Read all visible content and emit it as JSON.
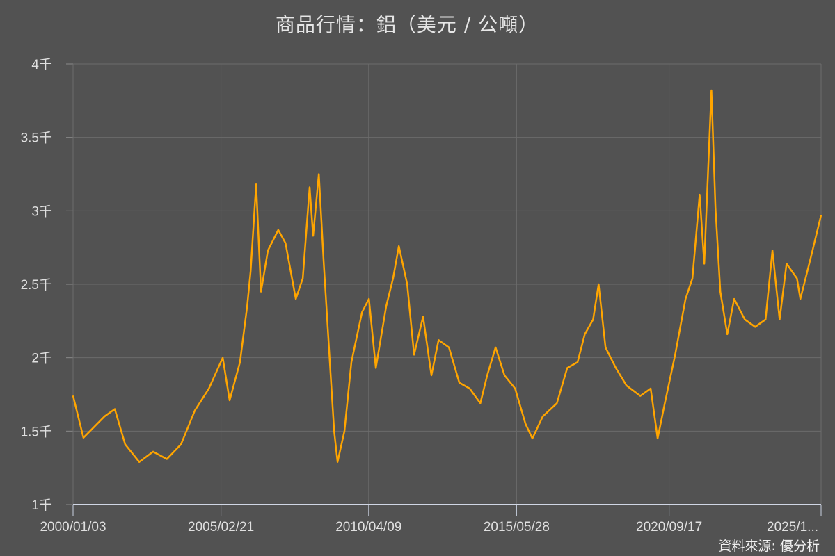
{
  "chart_data": {
    "type": "line",
    "title": "商品行情：鋁（美元 / 公噸）",
    "source": "資料來源: 優分析",
    "xlabel": "",
    "ylabel": "",
    "ylim": [
      1000,
      4000
    ],
    "xlim": [
      2000.0,
      2025.99
    ],
    "grid": true,
    "y_ticks": [
      {
        "value": 1000,
        "label": "1千"
      },
      {
        "value": 1500,
        "label": "1.5千"
      },
      {
        "value": 2000,
        "label": "2千"
      },
      {
        "value": 2500,
        "label": "2.5千"
      },
      {
        "value": 3000,
        "label": "3千"
      },
      {
        "value": 3500,
        "label": "3.5千"
      },
      {
        "value": 4000,
        "label": "4千"
      }
    ],
    "x_ticks": [
      {
        "value": 2000.0,
        "label": "2000/01/03"
      },
      {
        "value": 2005.14,
        "label": "2005/02/21"
      },
      {
        "value": 2010.27,
        "label": "2010/04/09"
      },
      {
        "value": 2015.41,
        "label": "2015/05/28"
      },
      {
        "value": 2020.71,
        "label": "2020/09/17"
      },
      {
        "value": 2025.99,
        "label": "2025/1..."
      }
    ],
    "series": [
      {
        "name": "鋁",
        "color": "#FFA500",
        "x": [
          2000.0,
          2000.36,
          2001.09,
          2001.45,
          2001.81,
          2002.3,
          2002.78,
          2003.26,
          2003.75,
          2004.23,
          2004.72,
          2005.2,
          2005.44,
          2005.8,
          2006.05,
          2006.17,
          2006.36,
          2006.53,
          2006.77,
          2007.13,
          2007.38,
          2007.74,
          2007.98,
          2008.22,
          2008.34,
          2008.54,
          2008.71,
          2008.95,
          2009.07,
          2009.19,
          2009.43,
          2009.67,
          2010.04,
          2010.28,
          2010.52,
          2010.88,
          2011.12,
          2011.32,
          2011.61,
          2011.85,
          2012.16,
          2012.45,
          2012.7,
          2013.06,
          2013.42,
          2013.78,
          2014.15,
          2014.39,
          2014.68,
          2014.99,
          2015.36,
          2015.72,
          2015.96,
          2016.32,
          2016.81,
          2017.17,
          2017.53,
          2017.78,
          2018.07,
          2018.26,
          2018.5,
          2018.86,
          2019.23,
          2019.71,
          2020.07,
          2020.31,
          2020.56,
          2020.92,
          2021.28,
          2021.52,
          2021.77,
          2021.93,
          2022.18,
          2022.32,
          2022.49,
          2022.73,
          2022.97,
          2023.34,
          2023.7,
          2024.06,
          2024.3,
          2024.55,
          2024.79,
          2025.15,
          2025.27,
          2025.63,
          2025.99
        ],
        "values": [
          1740,
          1455,
          1600,
          1650,
          1410,
          1290,
          1360,
          1310,
          1410,
          1640,
          1790,
          2000,
          1710,
          1970,
          2350,
          2590,
          3180,
          2450,
          2730,
          2870,
          2780,
          2400,
          2540,
          3160,
          2830,
          3250,
          2640,
          1880,
          1500,
          1290,
          1500,
          1970,
          2310,
          2400,
          1930,
          2350,
          2540,
          2760,
          2500,
          2020,
          2280,
          1880,
          2120,
          2070,
          1830,
          1790,
          1690,
          1880,
          2070,
          1880,
          1790,
          1550,
          1450,
          1600,
          1690,
          1930,
          1970,
          2160,
          2260,
          2500,
          2070,
          1930,
          1810,
          1740,
          1790,
          1450,
          1690,
          2020,
          2400,
          2540,
          3110,
          2640,
          3820,
          3020,
          2450,
          2160,
          2400,
          2260,
          2210,
          2260,
          2730,
          2260,
          2640,
          2540,
          2400,
          2680,
          2970
        ]
      }
    ]
  }
}
